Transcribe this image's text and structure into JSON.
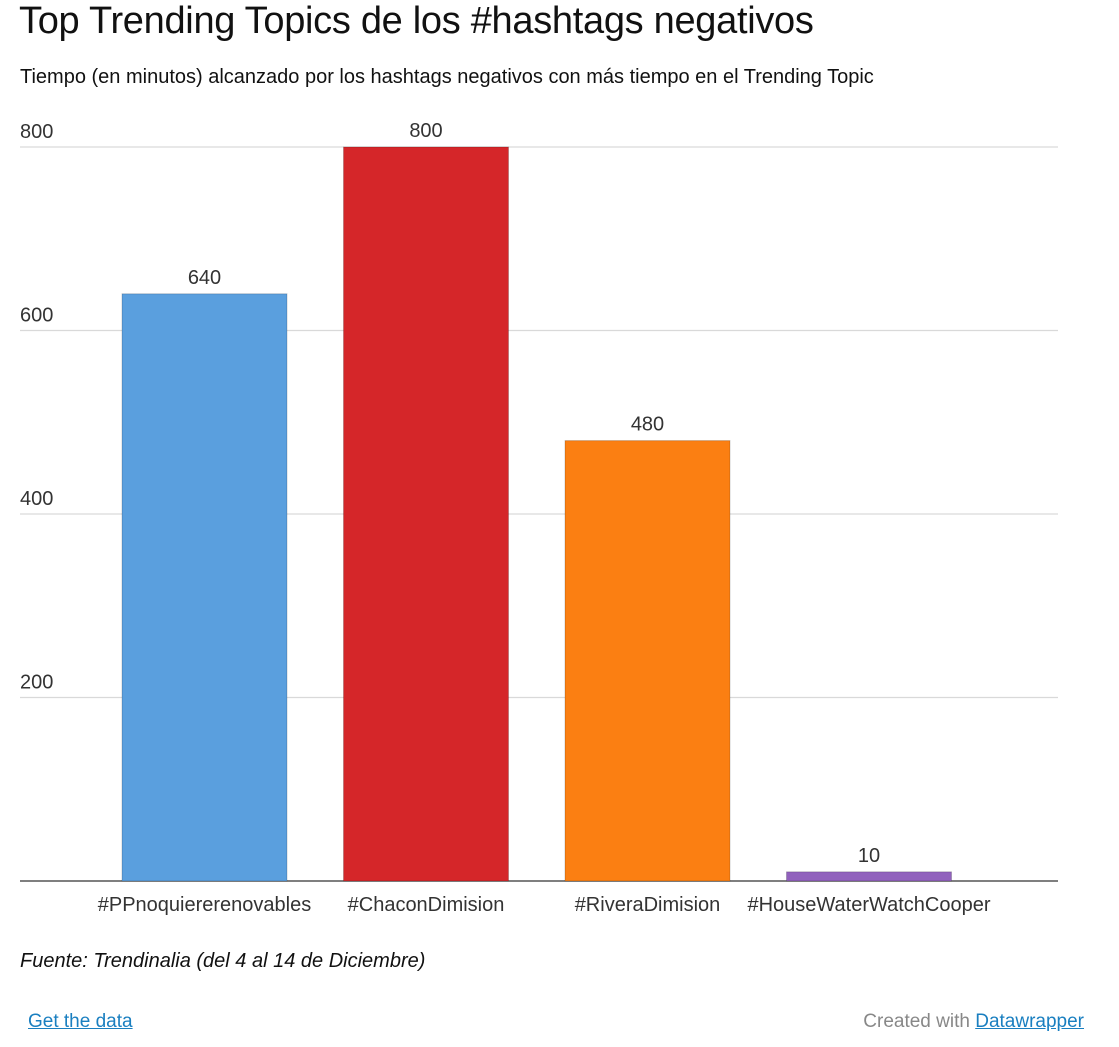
{
  "chart_data": {
    "type": "bar",
    "title": "Top Trending Topics de los #hashtags negativos",
    "subtitle": "Tiempo (en minutos) alcanzado por los hashtags negativos con más tiempo en el Trending Topic",
    "categories": [
      "#PPnoquiererenovables",
      "#ChaconDimision",
      "#RiveraDimision",
      "#HouseWaterWatchCooper"
    ],
    "values": [
      640,
      800,
      480,
      10
    ],
    "colors": [
      "#5a9fde",
      "#d52629",
      "#fb7f12",
      "#9161bd"
    ],
    "value_labels": [
      "640",
      "800",
      "480",
      "10"
    ],
    "yticks": [
      200,
      400,
      600,
      800
    ],
    "ytick_labels": [
      "200",
      "400",
      "600",
      "800"
    ],
    "ylim": [
      0,
      800
    ],
    "grid": true,
    "legend": "none",
    "xlabel": "",
    "ylabel": ""
  },
  "source": "Fuente: Trendinalia (del 4 al 14 de Diciembre)",
  "footer": {
    "get_data_label": "Get the data",
    "created_with_label": "Created with",
    "datawrapper_label": "Datawrapper"
  }
}
